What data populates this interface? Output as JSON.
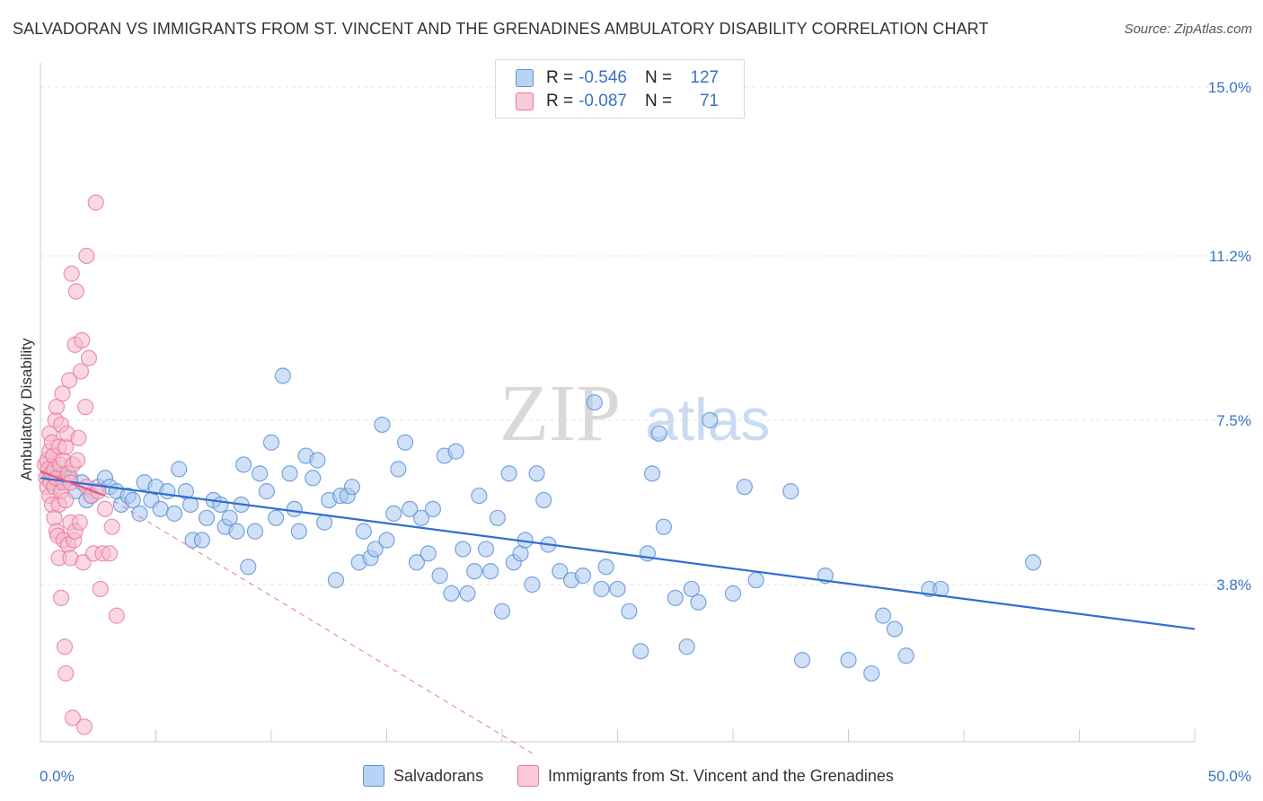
{
  "title": "SALVADORAN VS IMMIGRANTS FROM ST. VINCENT AND THE GRENADINES AMBULATORY DISABILITY CORRELATION CHART",
  "source": "Source: ZipAtlas.com",
  "watermark": {
    "zip": "ZIP",
    "atlas": "atlas"
  },
  "legend": {
    "rows": [
      {
        "r_label": "R =",
        "r_value": "-0.546",
        "n_label": "N =",
        "n_value": "127"
      },
      {
        "r_label": "R =",
        "r_value": "-0.087",
        "n_label": "N =",
        "n_value": "71"
      }
    ]
  },
  "colors": {
    "blue_fill": "#a9c8f0",
    "blue_stroke": "#5b8fd6",
    "blue_line": "#2f6fd0",
    "pink_fill": "#f6b8cb",
    "pink_stroke": "#e8799d",
    "pink_line": "#e05c8a",
    "grid": "#e4e4e4",
    "tick_text": "#3a73c4"
  },
  "chart_data": {
    "type": "scatter",
    "title": "SALVADORAN VS IMMIGRANTS FROM ST. VINCENT AND THE GRENADINES AMBULATORY DISABILITY CORRELATION CHART",
    "xlabel": "",
    "ylabel": "Ambulatory Disability",
    "xlim": [
      0,
      50
    ],
    "ylim": [
      0,
      15.5
    ],
    "x_tick_labels": [
      "0.0%",
      "50.0%"
    ],
    "y_ticks": [
      3.8,
      7.5,
      11.2,
      15.0
    ],
    "y_tick_labels": [
      "3.8%",
      "7.5%",
      "11.2%",
      "15.0%"
    ],
    "grid": true,
    "legend_position": "top-center",
    "series": [
      {
        "name": "Salvadorans",
        "color": "#a9c8f0",
        "trend": {
          "x0": 0,
          "y0": 6.2,
          "x1": 50,
          "y1": 2.8
        },
        "points": [
          [
            0.4,
            6.3
          ],
          [
            0.6,
            6.2
          ],
          [
            0.8,
            6.1
          ],
          [
            1.0,
            6.3
          ],
          [
            1.3,
            6.2
          ],
          [
            1.5,
            5.9
          ],
          [
            1.8,
            6.1
          ],
          [
            2.0,
            5.7
          ],
          [
            2.2,
            5.8
          ],
          [
            2.5,
            6.0
          ],
          [
            2.8,
            6.2
          ],
          [
            3.0,
            6.0
          ],
          [
            3.3,
            5.9
          ],
          [
            3.5,
            5.6
          ],
          [
            3.8,
            5.8
          ],
          [
            4.0,
            5.7
          ],
          [
            4.3,
            5.4
          ],
          [
            4.5,
            6.1
          ],
          [
            4.8,
            5.7
          ],
          [
            5.0,
            6.0
          ],
          [
            5.2,
            5.5
          ],
          [
            5.5,
            5.9
          ],
          [
            5.8,
            5.4
          ],
          [
            6.0,
            6.4
          ],
          [
            6.3,
            5.9
          ],
          [
            6.5,
            5.6
          ],
          [
            6.6,
            4.8
          ],
          [
            7.0,
            4.8
          ],
          [
            7.2,
            5.3
          ],
          [
            7.5,
            5.7
          ],
          [
            7.8,
            5.6
          ],
          [
            8.0,
            5.1
          ],
          [
            8.2,
            5.3
          ],
          [
            8.5,
            5.0
          ],
          [
            8.7,
            5.6
          ],
          [
            8.8,
            6.5
          ],
          [
            9.0,
            4.2
          ],
          [
            9.3,
            5.0
          ],
          [
            9.5,
            6.3
          ],
          [
            9.8,
            5.9
          ],
          [
            10.0,
            7.0
          ],
          [
            10.2,
            5.3
          ],
          [
            10.5,
            8.5
          ],
          [
            10.8,
            6.3
          ],
          [
            11.0,
            5.5
          ],
          [
            11.2,
            5.0
          ],
          [
            11.5,
            6.7
          ],
          [
            11.8,
            6.2
          ],
          [
            12.0,
            6.6
          ],
          [
            12.3,
            5.2
          ],
          [
            12.5,
            5.7
          ],
          [
            12.8,
            3.9
          ],
          [
            13.0,
            5.8
          ],
          [
            13.3,
            5.8
          ],
          [
            13.5,
            6.0
          ],
          [
            13.8,
            4.3
          ],
          [
            14.0,
            5.0
          ],
          [
            14.3,
            4.4
          ],
          [
            14.5,
            4.6
          ],
          [
            14.8,
            7.4
          ],
          [
            15.0,
            4.8
          ],
          [
            15.3,
            5.4
          ],
          [
            15.5,
            6.4
          ],
          [
            15.8,
            7.0
          ],
          [
            16.0,
            5.5
          ],
          [
            16.3,
            4.3
          ],
          [
            16.5,
            5.3
          ],
          [
            16.8,
            4.5
          ],
          [
            17.0,
            5.5
          ],
          [
            17.3,
            4.0
          ],
          [
            17.5,
            6.7
          ],
          [
            17.8,
            3.6
          ],
          [
            18.0,
            6.8
          ],
          [
            18.3,
            4.6
          ],
          [
            18.5,
            3.6
          ],
          [
            18.8,
            4.1
          ],
          [
            19.0,
            5.8
          ],
          [
            19.3,
            4.6
          ],
          [
            19.5,
            4.1
          ],
          [
            19.8,
            5.3
          ],
          [
            20.0,
            3.2
          ],
          [
            20.3,
            6.3
          ],
          [
            20.5,
            4.3
          ],
          [
            20.8,
            4.5
          ],
          [
            21.0,
            4.8
          ],
          [
            21.3,
            3.8
          ],
          [
            21.5,
            6.3
          ],
          [
            21.8,
            5.7
          ],
          [
            22.0,
            4.7
          ],
          [
            22.5,
            4.1
          ],
          [
            23.0,
            3.9
          ],
          [
            23.5,
            4.0
          ],
          [
            24.0,
            7.9
          ],
          [
            24.3,
            3.7
          ],
          [
            24.5,
            4.2
          ],
          [
            25.0,
            3.7
          ],
          [
            25.5,
            3.2
          ],
          [
            26.0,
            2.3
          ],
          [
            26.3,
            4.5
          ],
          [
            26.5,
            6.3
          ],
          [
            26.8,
            7.2
          ],
          [
            27.0,
            5.1
          ],
          [
            27.5,
            3.5
          ],
          [
            28.0,
            2.4
          ],
          [
            28.2,
            3.7
          ],
          [
            28.5,
            3.4
          ],
          [
            29.0,
            7.5
          ],
          [
            30.0,
            3.6
          ],
          [
            30.5,
            6.0
          ],
          [
            31.0,
            3.9
          ],
          [
            32.5,
            5.9
          ],
          [
            33.0,
            2.1
          ],
          [
            34.0,
            4.0
          ],
          [
            35.0,
            2.1
          ],
          [
            36.0,
            1.8
          ],
          [
            36.5,
            3.1
          ],
          [
            37.0,
            2.8
          ],
          [
            37.5,
            2.2
          ],
          [
            38.5,
            3.7
          ],
          [
            39.0,
            3.7
          ],
          [
            43.0,
            4.3
          ]
        ]
      },
      {
        "name": "Immigrants from St. Vincent and the Grenadines",
        "color": "#f6b8cb",
        "trend": {
          "x0": 0,
          "y0": 6.35,
          "x1": 2.8,
          "y1": 5.8,
          "dashed_to": {
            "x": 21.3,
            "y": 0
          }
        },
        "points": [
          [
            0.2,
            6.5
          ],
          [
            0.25,
            6.2
          ],
          [
            0.3,
            6.0
          ],
          [
            0.3,
            6.6
          ],
          [
            0.35,
            6.4
          ],
          [
            0.4,
            6.8
          ],
          [
            0.4,
            5.8
          ],
          [
            0.4,
            7.2
          ],
          [
            0.45,
            6.1
          ],
          [
            0.5,
            6.3
          ],
          [
            0.5,
            5.6
          ],
          [
            0.5,
            7.0
          ],
          [
            0.55,
            6.7
          ],
          [
            0.6,
            5.3
          ],
          [
            0.6,
            6.0
          ],
          [
            0.6,
            6.4
          ],
          [
            0.65,
            7.5
          ],
          [
            0.7,
            5.0
          ],
          [
            0.7,
            6.2
          ],
          [
            0.7,
            7.8
          ],
          [
            0.75,
            4.9
          ],
          [
            0.8,
            4.4
          ],
          [
            0.8,
            5.6
          ],
          [
            0.8,
            6.9
          ],
          [
            0.85,
            6.5
          ],
          [
            0.9,
            3.5
          ],
          [
            0.9,
            5.9
          ],
          [
            0.9,
            7.4
          ],
          [
            0.95,
            8.1
          ],
          [
            1.0,
            6.1
          ],
          [
            1.0,
            4.8
          ],
          [
            1.0,
            6.6
          ],
          [
            1.05,
            2.4
          ],
          [
            1.1,
            1.8
          ],
          [
            1.1,
            5.7
          ],
          [
            1.1,
            6.9
          ],
          [
            1.15,
            7.2
          ],
          [
            1.2,
            4.7
          ],
          [
            1.2,
            6.3
          ],
          [
            1.25,
            8.4
          ],
          [
            1.3,
            4.4
          ],
          [
            1.3,
            5.2
          ],
          [
            1.3,
            6.1
          ],
          [
            1.35,
            10.8
          ],
          [
            1.4,
            0.8
          ],
          [
            1.4,
            6.5
          ],
          [
            1.45,
            4.8
          ],
          [
            1.5,
            5.0
          ],
          [
            1.5,
            9.2
          ],
          [
            1.55,
            10.4
          ],
          [
            1.6,
            6.6
          ],
          [
            1.65,
            7.1
          ],
          [
            1.7,
            5.2
          ],
          [
            1.75,
            8.6
          ],
          [
            1.8,
            9.3
          ],
          [
            1.85,
            4.3
          ],
          [
            1.9,
            0.6
          ],
          [
            1.95,
            7.8
          ],
          [
            2.0,
            6.0
          ],
          [
            2.0,
            11.2
          ],
          [
            2.1,
            8.9
          ],
          [
            2.2,
            5.8
          ],
          [
            2.3,
            4.5
          ],
          [
            2.4,
            12.4
          ],
          [
            2.5,
            5.9
          ],
          [
            2.6,
            3.7
          ],
          [
            2.7,
            4.5
          ],
          [
            2.8,
            5.5
          ],
          [
            3.0,
            4.5
          ],
          [
            3.1,
            5.1
          ],
          [
            3.3,
            3.1
          ]
        ]
      }
    ]
  },
  "bottom_legend": {
    "items": [
      {
        "label": "Salvadorans"
      },
      {
        "label": "Immigrants from St. Vincent and the Grenadines"
      }
    ]
  }
}
